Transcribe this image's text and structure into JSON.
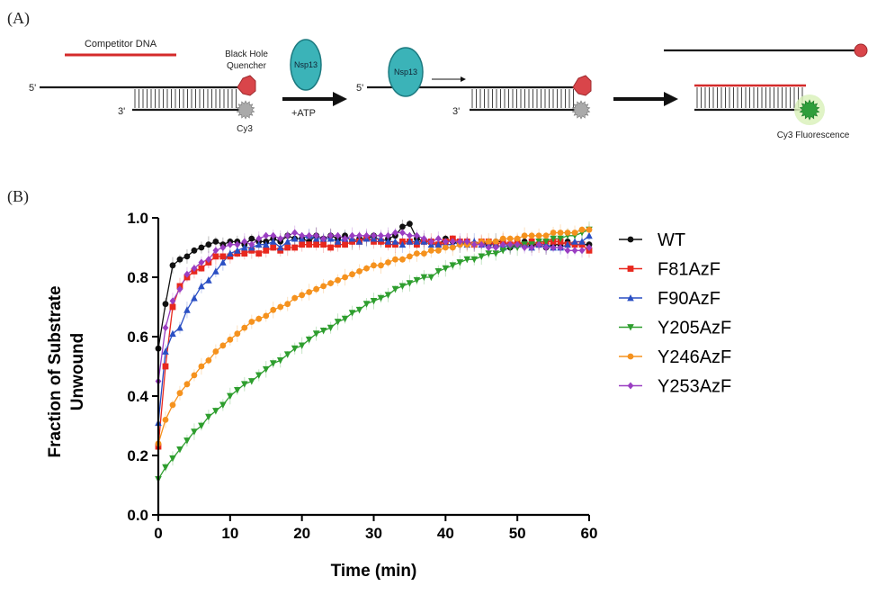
{
  "panel_a": {
    "label": "(A)",
    "competitor_dna": "Competitor DNA",
    "quencher": [
      "Black Hole",
      "Quencher"
    ],
    "five_prime": "5'",
    "three_prime": "3'",
    "cy3": "Cy3",
    "enzyme": "Nsp13",
    "atp": "+ATP",
    "fluorescence": "Cy3 Fluorescence",
    "colors": {
      "dna": "#1a1a1a",
      "competitor": "#d42a2a",
      "quencher": "#d9454a",
      "cy3": "#9a9a9a",
      "enzyme": "#3bb3b8",
      "enzyme_edge": "#1d7a80",
      "fluor": "#2f9e3a",
      "glow": "#d7f0b8"
    }
  },
  "panel_b": {
    "label": "(B)"
  },
  "chart_data": {
    "type": "line",
    "title": "",
    "xlabel": "Time (min)",
    "ylabel": [
      "Fraction of Substrate",
      "Unwound"
    ],
    "xlim": [
      0,
      60
    ],
    "ylim": [
      0,
      1.0
    ],
    "xticks": [
      "0",
      "10",
      "20",
      "30",
      "40",
      "50",
      "60"
    ],
    "yticks": [
      "0.0",
      "0.2",
      "0.4",
      "0.6",
      "0.8",
      "1.0"
    ],
    "grid": false,
    "legend_position": "right",
    "x": [
      0,
      1,
      2,
      3,
      4,
      5,
      6,
      7,
      8,
      9,
      10,
      11,
      12,
      13,
      14,
      15,
      16,
      17,
      18,
      19,
      20,
      21,
      22,
      23,
      24,
      25,
      26,
      27,
      28,
      29,
      30,
      31,
      32,
      33,
      34,
      35,
      36,
      37,
      38,
      39,
      40,
      41,
      42,
      43,
      44,
      45,
      46,
      47,
      48,
      49,
      50,
      51,
      52,
      53,
      54,
      55,
      56,
      57,
      58,
      59,
      60
    ],
    "series": [
      {
        "name": "WT",
        "color": "#111111",
        "marker": "circle",
        "values": [
          0.56,
          0.71,
          0.84,
          0.86,
          0.87,
          0.89,
          0.9,
          0.91,
          0.92,
          0.91,
          0.92,
          0.92,
          0.91,
          0.93,
          0.92,
          0.92,
          0.93,
          0.92,
          0.94,
          0.93,
          0.93,
          0.92,
          0.94,
          0.93,
          0.94,
          0.93,
          0.94,
          0.92,
          0.93,
          0.93,
          0.94,
          0.92,
          0.93,
          0.94,
          0.97,
          0.98,
          0.93,
          0.92,
          0.92,
          0.91,
          0.93,
          0.92,
          0.91,
          0.92,
          0.91,
          0.92,
          0.91,
          0.92,
          0.92,
          0.9,
          0.91,
          0.92,
          0.91,
          0.91,
          0.9,
          0.91,
          0.91,
          0.92,
          0.91,
          0.91,
          0.91
        ]
      },
      {
        "name": "F81AzF",
        "color": "#e8281e",
        "marker": "square",
        "values": [
          0.23,
          0.5,
          0.7,
          0.77,
          0.8,
          0.82,
          0.83,
          0.85,
          0.87,
          0.87,
          0.87,
          0.88,
          0.88,
          0.89,
          0.88,
          0.89,
          0.9,
          0.89,
          0.9,
          0.9,
          0.91,
          0.91,
          0.91,
          0.91,
          0.9,
          0.91,
          0.91,
          0.92,
          0.92,
          0.93,
          0.92,
          0.92,
          0.91,
          0.91,
          0.92,
          0.92,
          0.91,
          0.92,
          0.92,
          0.91,
          0.92,
          0.93,
          0.92,
          0.92,
          0.91,
          0.92,
          0.92,
          0.91,
          0.92,
          0.91,
          0.92,
          0.91,
          0.92,
          0.91,
          0.92,
          0.92,
          0.92,
          0.91,
          0.91,
          0.91,
          0.89
        ]
      },
      {
        "name": "F90AzF",
        "color": "#2a4fc4",
        "marker": "triangle-up",
        "values": [
          0.31,
          0.55,
          0.61,
          0.63,
          0.69,
          0.73,
          0.77,
          0.79,
          0.82,
          0.85,
          0.88,
          0.89,
          0.9,
          0.9,
          0.91,
          0.91,
          0.92,
          0.9,
          0.92,
          0.93,
          0.93,
          0.94,
          0.93,
          0.93,
          0.93,
          0.92,
          0.93,
          0.93,
          0.92,
          0.93,
          0.93,
          0.93,
          0.92,
          0.92,
          0.91,
          0.92,
          0.92,
          0.92,
          0.91,
          0.91,
          0.91,
          0.91,
          0.92,
          0.91,
          0.92,
          0.91,
          0.91,
          0.91,
          0.9,
          0.91,
          0.91,
          0.91,
          0.9,
          0.91,
          0.91,
          0.9,
          0.9,
          0.91,
          0.92,
          0.92,
          0.94
        ]
      },
      {
        "name": "Y205AzF",
        "color": "#2e9e2e",
        "marker": "triangle-down",
        "values": [
          0.12,
          0.16,
          0.19,
          0.22,
          0.25,
          0.28,
          0.3,
          0.33,
          0.35,
          0.37,
          0.4,
          0.42,
          0.44,
          0.45,
          0.47,
          0.49,
          0.51,
          0.52,
          0.54,
          0.56,
          0.57,
          0.59,
          0.61,
          0.62,
          0.63,
          0.65,
          0.66,
          0.68,
          0.69,
          0.71,
          0.72,
          0.73,
          0.74,
          0.76,
          0.77,
          0.78,
          0.79,
          0.8,
          0.8,
          0.82,
          0.83,
          0.84,
          0.85,
          0.86,
          0.86,
          0.87,
          0.88,
          0.88,
          0.89,
          0.9,
          0.9,
          0.91,
          0.91,
          0.92,
          0.92,
          0.93,
          0.93,
          0.94,
          0.94,
          0.95,
          0.96
        ]
      },
      {
        "name": "Y246AzF",
        "color": "#f5921e",
        "marker": "circle",
        "values": [
          0.24,
          0.32,
          0.37,
          0.41,
          0.44,
          0.47,
          0.5,
          0.52,
          0.55,
          0.57,
          0.59,
          0.61,
          0.63,
          0.65,
          0.66,
          0.67,
          0.69,
          0.7,
          0.71,
          0.73,
          0.74,
          0.75,
          0.76,
          0.77,
          0.78,
          0.79,
          0.8,
          0.81,
          0.82,
          0.83,
          0.84,
          0.84,
          0.85,
          0.86,
          0.86,
          0.87,
          0.88,
          0.88,
          0.89,
          0.89,
          0.9,
          0.9,
          0.91,
          0.91,
          0.91,
          0.92,
          0.92,
          0.92,
          0.93,
          0.93,
          0.93,
          0.94,
          0.94,
          0.94,
          0.94,
          0.95,
          0.95,
          0.95,
          0.95,
          0.96,
          0.96
        ]
      },
      {
        "name": "Y253AzF",
        "color": "#9a3ec2",
        "marker": "diamond",
        "values": [
          0.45,
          0.63,
          0.72,
          0.76,
          0.81,
          0.83,
          0.85,
          0.86,
          0.89,
          0.9,
          0.91,
          0.91,
          0.92,
          0.91,
          0.93,
          0.94,
          0.94,
          0.93,
          0.94,
          0.95,
          0.94,
          0.94,
          0.94,
          0.93,
          0.94,
          0.94,
          0.93,
          0.94,
          0.94,
          0.94,
          0.94,
          0.94,
          0.94,
          0.95,
          0.95,
          0.94,
          0.94,
          0.93,
          0.92,
          0.93,
          0.92,
          0.92,
          0.92,
          0.92,
          0.91,
          0.91,
          0.9,
          0.9,
          0.91,
          0.91,
          0.91,
          0.9,
          0.9,
          0.91,
          0.9,
          0.9,
          0.9,
          0.89,
          0.89,
          0.89,
          0.9
        ]
      }
    ]
  }
}
